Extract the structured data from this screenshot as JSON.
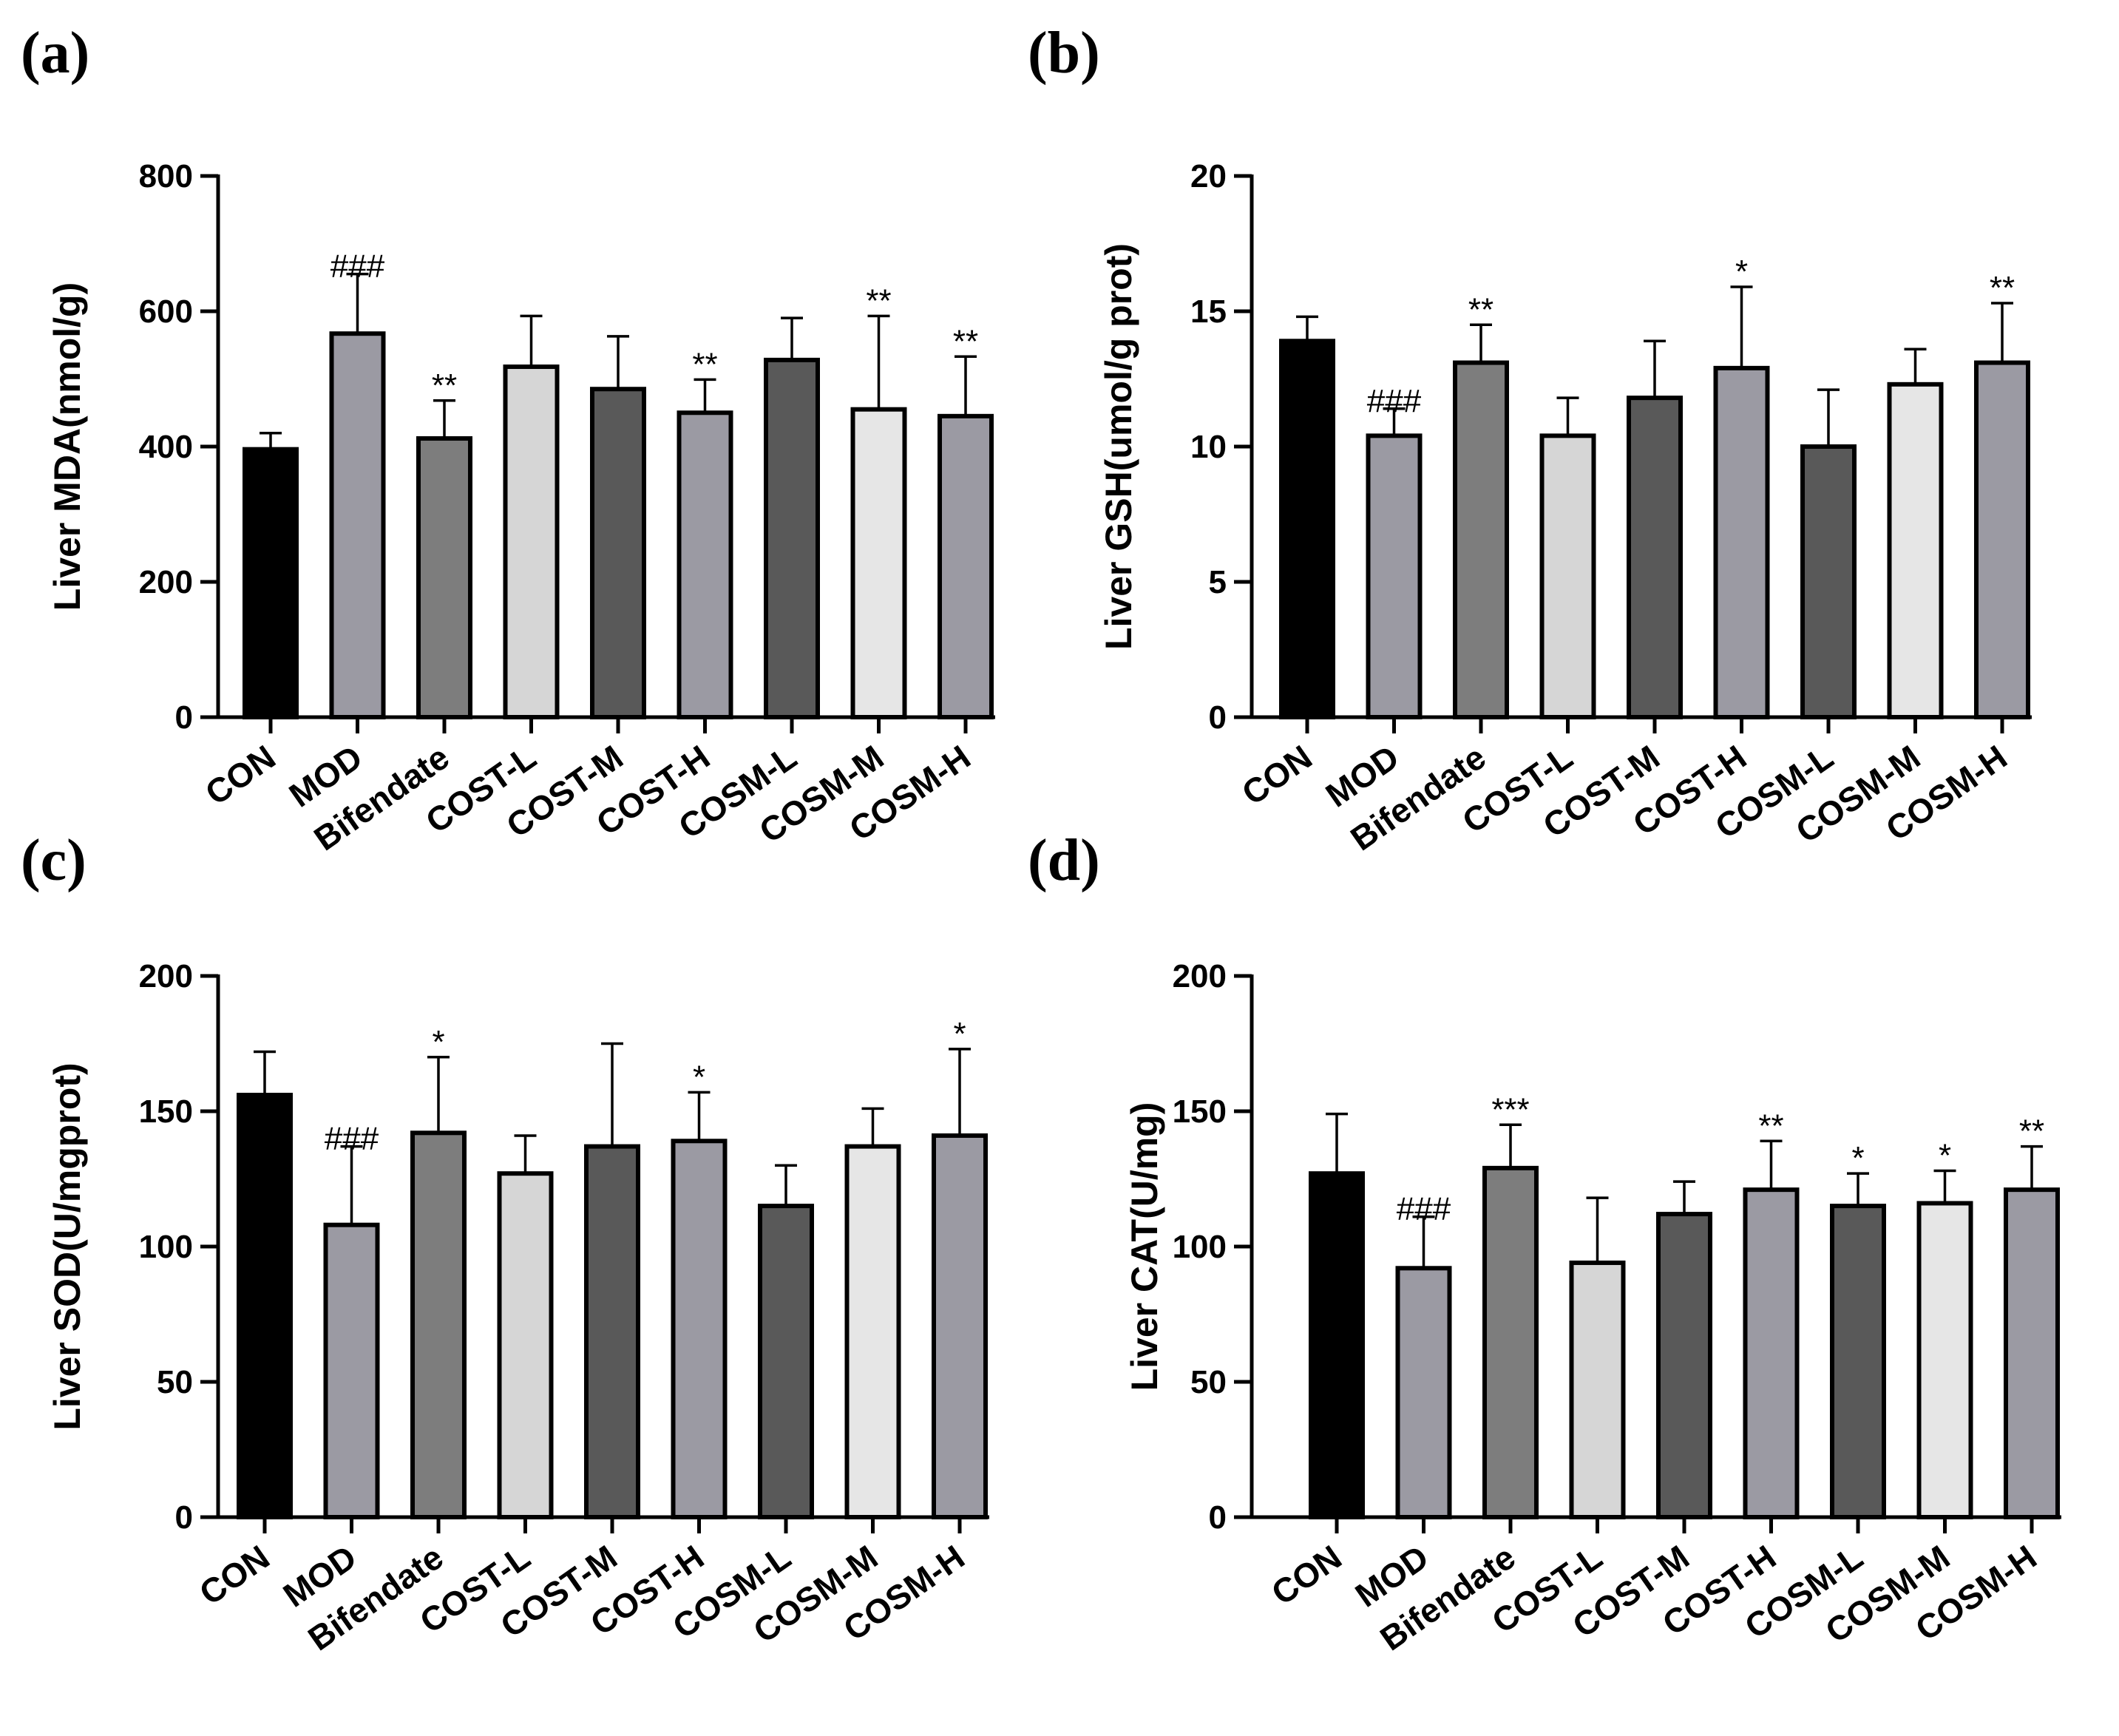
{
  "colors": {
    "CON": "#000000",
    "MOD": "#9b9aa3",
    "Bifendate": "#7d7d7d",
    "COST-L": "#d6d6d6",
    "COST-M": "#595959",
    "COST-H": "#9b9aa3",
    "COSM-L": "#595959",
    "COSM-M": "#e6e6e6",
    "COSM-H": "#9b9aa3"
  },
  "chart_data": [
    {
      "panel_label": "(a)",
      "type": "bar",
      "ylabel": "Liver MDA(nmol/g)",
      "ylim": [
        0,
        800
      ],
      "yticks": [
        "0",
        "200",
        "400",
        "600",
        "800"
      ],
      "categories": [
        "CON",
        "MOD",
        "Bifendate",
        "COST-L",
        "COST-M",
        "COST-H",
        "COSM-L",
        "COSM-M",
        "COSM-H"
      ],
      "values": [
        396,
        567,
        412,
        518,
        485,
        450,
        528,
        455,
        445
      ],
      "errors": [
        24,
        88,
        56,
        75,
        78,
        49,
        62,
        138,
        88
      ],
      "significance": [
        "",
        "###",
        "**",
        "",
        "",
        "**",
        "",
        "**",
        "**"
      ]
    },
    {
      "panel_label": "(b)",
      "type": "bar",
      "ylabel": "Liver GSH(umol/g prot)",
      "ylim": [
        0,
        20
      ],
      "yticks": [
        "0",
        "5",
        "10",
        "15",
        "20"
      ],
      "categories": [
        "CON",
        "MOD",
        "Bifendate",
        "COST-L",
        "COST-M",
        "COST-H",
        "COSM-L",
        "COSM-M",
        "COSM-H"
      ],
      "values": [
        13.9,
        10.4,
        13.1,
        10.4,
        11.8,
        12.9,
        10.0,
        12.3,
        13.1
      ],
      "errors": [
        0.9,
        1.0,
        1.4,
        1.4,
        2.1,
        3.0,
        2.1,
        1.3,
        2.2
      ],
      "significance": [
        "",
        "###",
        "**",
        "",
        "",
        "*",
        "",
        "",
        "**"
      ]
    },
    {
      "panel_label": "(c)",
      "type": "bar",
      "ylabel": "Liver SOD(U/mgprot)",
      "ylim": [
        0,
        200
      ],
      "yticks": [
        "0",
        "50",
        "100",
        "150",
        "200"
      ],
      "categories": [
        "CON",
        "MOD",
        "Bifendate",
        "COST-L",
        "COST-M",
        "COST-H",
        "COSM-L",
        "COSM-M",
        "COSM-H"
      ],
      "values": [
        156,
        108,
        142,
        127,
        137,
        139,
        115,
        137,
        141
      ],
      "errors": [
        16,
        29,
        28,
        14,
        38,
        18,
        15,
        14,
        32
      ],
      "significance": [
        "",
        "###",
        "*",
        "",
        "",
        "*",
        "",
        "",
        "*"
      ]
    },
    {
      "panel_label": "(d)",
      "type": "bar",
      "ylabel": "Liver CAT(U/mg)",
      "ylim": [
        0,
        200
      ],
      "yticks": [
        "0",
        "50",
        "100",
        "150",
        "200"
      ],
      "categories": [
        "CON",
        "MOD",
        "Bifendate",
        "COST-L",
        "COST-M",
        "COST-H",
        "COSM-L",
        "COSM-M",
        "COSM-H"
      ],
      "values": [
        127,
        92,
        129,
        94,
        112,
        121,
        115,
        116,
        121
      ],
      "errors": [
        22,
        19,
        16,
        24,
        12,
        18,
        12,
        12,
        16
      ],
      "significance": [
        "",
        "###",
        "***",
        "",
        "",
        "**",
        "*",
        "*",
        "**"
      ]
    }
  ]
}
